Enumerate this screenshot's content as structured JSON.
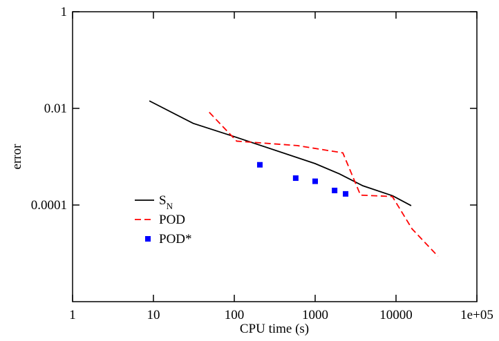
{
  "chart_data": {
    "type": "line",
    "x_label": "CPU time (s)",
    "y_label": "error",
    "x_scale": "log",
    "y_scale": "log",
    "xlim": [
      1,
      100000
    ],
    "ylim": [
      1e-06,
      1
    ],
    "xticks": [
      1,
      10,
      100,
      1000,
      10000,
      {
        "value": 100000,
        "label": "1e+05"
      }
    ],
    "yticks": [
      0.0001,
      0.01,
      1
    ],
    "legend": "lower left",
    "series": [
      {
        "name": "S_N",
        "color": "#000000",
        "style": "solid",
        "x": [
          8.9,
          31,
          100,
          1000,
          2000,
          3890,
          9100,
          15400
        ],
        "values": [
          0.0143,
          0.0049,
          0.0026,
          0.00072,
          0.00044,
          0.00025,
          0.000155,
          9.7e-05
        ]
      },
      {
        "name": "POD",
        "color": "#ff0000",
        "style": "dashed",
        "x": [
          49,
          107,
          600,
          2200,
          3640,
          9000,
          15800,
          33000
        ],
        "values": [
          0.0083,
          0.0021,
          0.0017,
          0.0012,
          0.00016,
          0.00015,
          3.2e-05,
          8.7e-06
        ]
      },
      {
        "name": "POD*",
        "color": "#0000ff",
        "style": "markers",
        "x": [
          207,
          575,
          1000,
          1740,
          2380
        ],
        "values": [
          0.00068,
          0.00036,
          0.00031,
          0.0002,
          0.00017
        ]
      }
    ]
  }
}
